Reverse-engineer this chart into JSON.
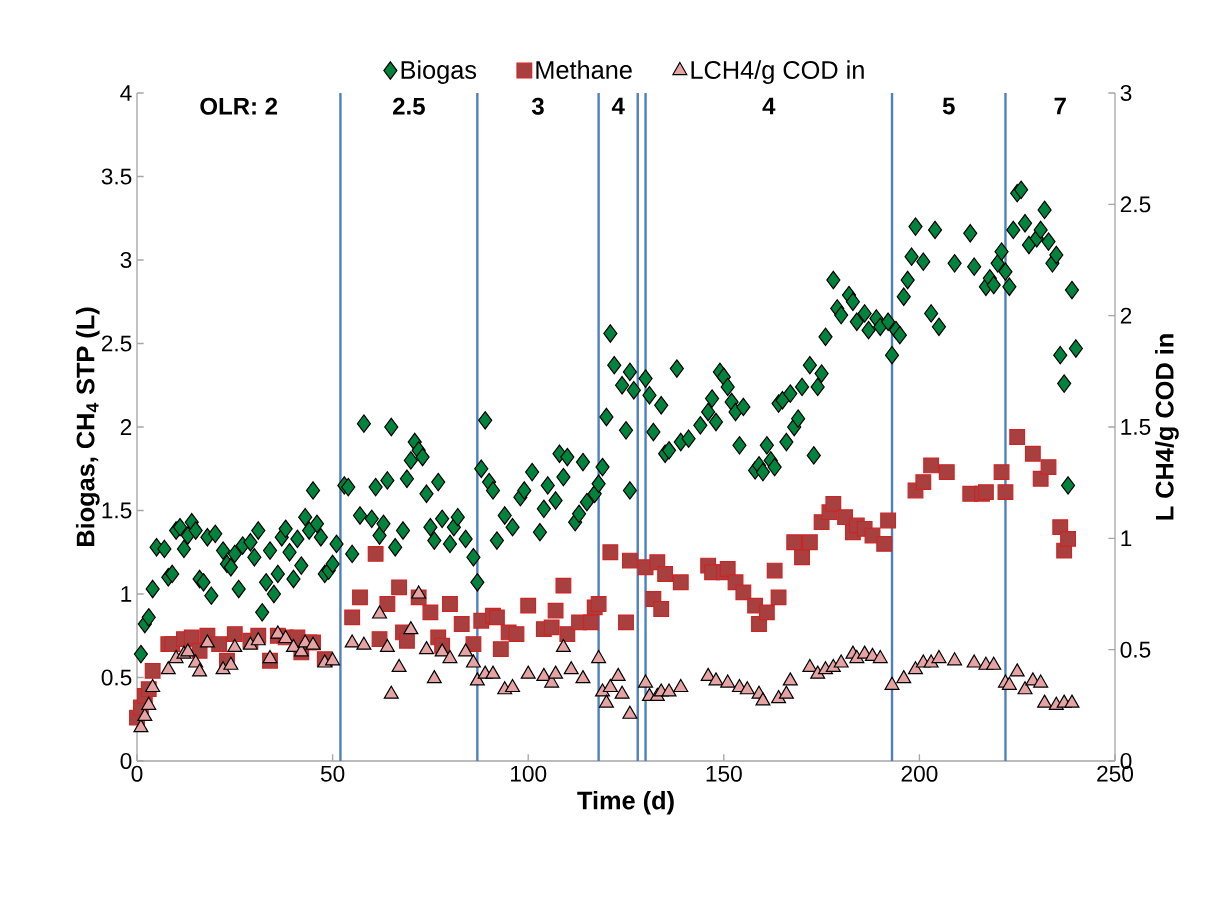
{
  "chart_data": {
    "type": "scatter",
    "xlabel": "Time (d)",
    "ylabel": "Biogas,  CH$_{4}$ STP (L)",
    "y2label": "L CH4/g COD in",
    "xlim": [
      0,
      250
    ],
    "xticks": [
      0,
      50,
      100,
      150,
      200,
      250
    ],
    "ylim": [
      0,
      4
    ],
    "yticks": [
      0,
      0.5,
      1,
      1.5,
      2,
      2.5,
      3,
      3.5,
      4
    ],
    "y2lim": [
      0,
      3
    ],
    "y2ticks": [
      0,
      0.5,
      1,
      1.5,
      2,
      2.5,
      3
    ],
    "legend": "top",
    "grid": false,
    "series": [
      {
        "name": "Biogas",
        "color": "#00843d",
        "marker": "diamond",
        "x": [
          1,
          2,
          3,
          4,
          5,
          7,
          8,
          9,
          10,
          11,
          12,
          13,
          14,
          15,
          16,
          17,
          18,
          19,
          20,
          22,
          23,
          24,
          25,
          26,
          27,
          29,
          30,
          31,
          32,
          33,
          34,
          35,
          36,
          37,
          38,
          39,
          40,
          41,
          42,
          43,
          44,
          45,
          46,
          47,
          48,
          49,
          50,
          51,
          53,
          54,
          55,
          57,
          58,
          60,
          61,
          62,
          63,
          64,
          65,
          66,
          68,
          69,
          70,
          71,
          72,
          73,
          74,
          75,
          76,
          77,
          78,
          80,
          81,
          82,
          84,
          86,
          87,
          88,
          89,
          90,
          91,
          92,
          94,
          96,
          98,
          99,
          101,
          103,
          104,
          105,
          107,
          108,
          109,
          110,
          112,
          113,
          114,
          115,
          117,
          118,
          119,
          120,
          121,
          122,
          124,
          125,
          126,
          126,
          127,
          130,
          131,
          132,
          134,
          135,
          136,
          138,
          139,
          141,
          144,
          146,
          147,
          148,
          149,
          150,
          151,
          152,
          153,
          154,
          155,
          158,
          159,
          160,
          161,
          162,
          163,
          164,
          165,
          166,
          167,
          168,
          169,
          170,
          172,
          173,
          174,
          175,
          176,
          178,
          179,
          180,
          182,
          183,
          184,
          186,
          187,
          189,
          190,
          192,
          193,
          194,
          195,
          196,
          197,
          198,
          199,
          201,
          203,
          204,
          205,
          209,
          213,
          214,
          217,
          218,
          219,
          220,
          221,
          222,
          223,
          224,
          225,
          226,
          227,
          228,
          230,
          231,
          232,
          233,
          234,
          235,
          236,
          237,
          238,
          239,
          240
        ],
        "values": [
          0.64,
          0.82,
          0.86,
          1.03,
          1.28,
          1.27,
          1.1,
          1.12,
          1.38,
          1.4,
          1.27,
          1.35,
          1.43,
          1.38,
          1.09,
          1.07,
          1.34,
          0.99,
          1.36,
          1.26,
          1.18,
          1.16,
          1.24,
          1.03,
          1.29,
          1.31,
          1.22,
          1.38,
          0.89,
          1.07,
          1.26,
          1.0,
          1.12,
          1.34,
          1.39,
          1.25,
          1.09,
          1.33,
          1.17,
          1.46,
          1.38,
          1.62,
          1.42,
          1.34,
          1.12,
          1.14,
          1.18,
          1.3,
          1.65,
          1.64,
          1.24,
          1.47,
          2.02,
          1.45,
          1.64,
          1.35,
          1.42,
          1.68,
          2.0,
          1.28,
          1.38,
          1.69,
          1.8,
          1.91,
          1.86,
          1.82,
          1.6,
          1.4,
          1.32,
          1.67,
          1.45,
          1.3,
          1.4,
          1.46,
          1.33,
          1.22,
          1.07,
          1.75,
          2.04,
          1.67,
          1.62,
          1.32,
          1.47,
          1.4,
          1.58,
          1.62,
          1.73,
          1.37,
          1.51,
          1.65,
          1.56,
          1.84,
          1.7,
          1.82,
          1.43,
          1.48,
          1.79,
          1.55,
          1.6,
          1.66,
          1.76,
          2.06,
          2.56,
          2.37,
          2.25,
          1.98,
          2.33,
          1.62,
          2.22,
          2.29,
          2.19,
          1.97,
          2.13,
          1.84,
          1.86,
          2.35,
          1.91,
          1.93,
          2.01,
          2.09,
          2.17,
          2.03,
          2.33,
          2.3,
          2.24,
          2.15,
          2.09,
          1.89,
          2.12,
          1.74,
          1.77,
          1.73,
          1.89,
          1.8,
          1.76,
          2.14,
          2.16,
          1.91,
          2.2,
          2.0,
          2.05,
          2.24,
          2.37,
          1.83,
          2.24,
          2.32,
          2.54,
          2.88,
          2.71,
          2.67,
          2.79,
          2.75,
          2.63,
          2.68,
          2.58,
          2.65,
          2.6,
          2.63,
          2.43,
          2.58,
          2.55,
          2.78,
          2.88,
          3.02,
          3.2,
          2.99,
          2.68,
          3.18,
          2.6,
          2.98,
          3.16,
          2.96,
          2.84,
          2.89,
          2.85,
          2.98,
          3.05,
          2.93,
          2.84,
          3.18,
          3.4,
          3.42,
          3.22,
          3.09,
          3.13,
          3.18,
          3.3,
          3.11,
          2.98,
          3.03,
          2.43,
          2.26,
          1.65,
          2.82,
          2.47
        ]
      },
      {
        "name": "Methane",
        "color": "#a84040",
        "marker": "square",
        "x": [
          0,
          1,
          2,
          3,
          4,
          8,
          9,
          12,
          14,
          16,
          18,
          21,
          23,
          25,
          29,
          31,
          34,
          36,
          38,
          41,
          42,
          44,
          45,
          48,
          55,
          57,
          61,
          62,
          64,
          67,
          68,
          69,
          72,
          75,
          77,
          78,
          80,
          83,
          86,
          88,
          91,
          92,
          93,
          95,
          97,
          100,
          104,
          106,
          107,
          109,
          110,
          113,
          116,
          117,
          118,
          121,
          125,
          126,
          130,
          132,
          133,
          134,
          135,
          139,
          146,
          147,
          150,
          151,
          153,
          155,
          158,
          159,
          161,
          163,
          164,
          168,
          170,
          172,
          175,
          177,
          178,
          181,
          183,
          184,
          186,
          188,
          191,
          192,
          199,
          201,
          203,
          207,
          213,
          216,
          217,
          221,
          222,
          225,
          229,
          231,
          233,
          236,
          237,
          238
        ],
        "values": [
          0.26,
          0.32,
          0.39,
          0.43,
          0.54,
          0.7,
          0.7,
          0.73,
          0.74,
          0.66,
          0.75,
          0.7,
          0.6,
          0.76,
          0.72,
          0.75,
          0.6,
          0.75,
          0.74,
          0.74,
          0.65,
          0.71,
          0.71,
          0.61,
          0.86,
          0.98,
          1.24,
          0.73,
          0.94,
          1.04,
          0.77,
          0.72,
          0.98,
          0.89,
          0.74,
          0.69,
          0.94,
          0.82,
          0.7,
          0.84,
          0.87,
          0.86,
          0.67,
          0.77,
          0.76,
          0.93,
          0.79,
          0.8,
          0.9,
          1.05,
          0.76,
          0.83,
          0.83,
          0.92,
          0.94,
          1.25,
          0.83,
          1.2,
          1.16,
          0.97,
          1.19,
          0.91,
          1.12,
          1.07,
          1.17,
          1.13,
          1.13,
          1.15,
          1.07,
          1.01,
          0.93,
          0.82,
          0.89,
          1.14,
          0.98,
          1.31,
          1.22,
          1.31,
          1.43,
          1.49,
          1.54,
          1.46,
          1.37,
          1.41,
          1.39,
          1.35,
          1.3,
          1.44,
          1.62,
          1.67,
          1.77,
          1.73,
          1.6,
          1.6,
          1.61,
          1.73,
          1.61,
          1.94,
          1.84,
          1.69,
          1.76,
          1.4,
          1.26,
          1.33
        ]
      },
      {
        "name": "LCH4/g COD in",
        "color": "#e6a3a3",
        "marker": "triangle",
        "axis": "y2",
        "x": [
          1,
          2,
          3,
          4,
          8,
          10,
          12,
          13,
          15,
          16,
          18,
          22,
          24,
          25,
          29,
          31,
          34,
          36,
          38,
          40,
          42,
          43,
          45,
          48,
          50,
          55,
          58,
          62,
          64,
          65,
          67,
          70,
          72,
          74,
          76,
          78,
          80,
          84,
          86,
          87,
          89,
          91,
          94,
          96,
          100,
          104,
          106,
          107,
          109,
          111,
          114,
          118,
          119,
          120,
          121,
          123,
          124,
          126,
          130,
          131,
          133,
          134,
          136,
          139,
          146,
          148,
          151,
          154,
          156,
          159,
          160,
          164,
          166,
          167,
          172,
          174,
          176,
          178,
          180,
          183,
          184,
          186,
          188,
          190,
          193,
          196,
          199,
          201,
          203,
          205,
          209,
          214,
          217,
          219,
          222,
          223,
          225,
          227,
          229,
          231,
          232,
          235,
          237,
          239
        ],
        "values": [
          0.15,
          0.2,
          0.25,
          0.33,
          0.41,
          0.46,
          0.48,
          0.49,
          0.44,
          0.4,
          0.53,
          0.41,
          0.43,
          0.51,
          0.52,
          0.54,
          0.46,
          0.57,
          0.55,
          0.51,
          0.49,
          0.53,
          0.52,
          0.44,
          0.45,
          0.53,
          0.52,
          0.66,
          0.51,
          0.3,
          0.42,
          0.59,
          0.75,
          0.5,
          0.37,
          0.49,
          0.46,
          0.49,
          0.44,
          0.36,
          0.39,
          0.39,
          0.32,
          0.33,
          0.39,
          0.38,
          0.35,
          0.39,
          0.51,
          0.41,
          0.37,
          0.46,
          0.31,
          0.26,
          0.33,
          0.38,
          0.3,
          0.21,
          0.35,
          0.29,
          0.29,
          0.31,
          0.31,
          0.33,
          0.38,
          0.36,
          0.35,
          0.33,
          0.32,
          0.3,
          0.27,
          0.28,
          0.3,
          0.36,
          0.42,
          0.39,
          0.41,
          0.42,
          0.44,
          0.48,
          0.46,
          0.48,
          0.47,
          0.46,
          0.34,
          0.37,
          0.41,
          0.44,
          0.44,
          0.46,
          0.45,
          0.44,
          0.43,
          0.43,
          0.35,
          0.34,
          0.4,
          0.32,
          0.36,
          0.35,
          0.26,
          0.25,
          0.26,
          0.26
        ]
      }
    ],
    "ref_lines": [
      {
        "axis": "x",
        "value": 52,
        "color": "#4f81bd"
      },
      {
        "axis": "x",
        "value": 87,
        "color": "#4f81bd"
      },
      {
        "axis": "x",
        "value": 118,
        "color": "#4f81bd"
      },
      {
        "axis": "x",
        "value": 128,
        "color": "#4f81bd"
      },
      {
        "axis": "x",
        "value": 130,
        "color": "#4f81bd"
      },
      {
        "axis": "x",
        "value": 193,
        "color": "#4f81bd"
      },
      {
        "axis": "x",
        "value": 222,
        "color": "#4f81bd"
      }
    ],
    "annotations": [
      "OLR: 2",
      "2.5",
      "3",
      "4",
      "4",
      "5",
      "7"
    ]
  }
}
